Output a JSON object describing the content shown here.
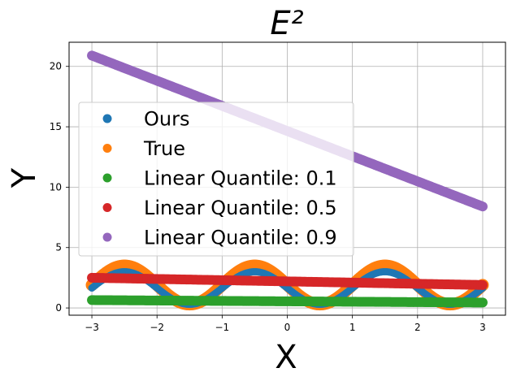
{
  "chart_data": {
    "type": "scatter",
    "title": "E²",
    "xlabel": "X",
    "ylabel": "Y",
    "xlim": [
      -3.35,
      3.35
    ],
    "ylim": [
      -0.6,
      22
    ],
    "xticks": [
      -3,
      -2,
      -1,
      0,
      1,
      2,
      3
    ],
    "yticks": [
      0,
      5,
      10,
      15,
      20
    ],
    "grid": true,
    "legend_position": "center-left",
    "x_range": [
      -3,
      3
    ],
    "series": [
      {
        "name": "Ours",
        "color": "#1f77b4",
        "kind": "wave",
        "offset": 1.65,
        "amplitude": 1.35,
        "period": 2,
        "peak_x": -0.5
      },
      {
        "name": "True",
        "color": "#ff7f0e",
        "kind": "wave",
        "offset": 1.9,
        "amplitude": 1.6,
        "period": 2,
        "peak_x": -0.5
      },
      {
        "name": "Linear Quantile: 0.1",
        "color": "#2ca02c",
        "kind": "line",
        "y_start": 0.65,
        "y_end": 0.45
      },
      {
        "name": "Linear Quantile: 0.5",
        "color": "#d62728",
        "kind": "line",
        "y_start": 2.5,
        "y_end": 1.9
      },
      {
        "name": "Linear Quantile: 0.9",
        "color": "#9467bd",
        "kind": "line",
        "y_start": 20.9,
        "y_end": 8.4
      }
    ]
  }
}
